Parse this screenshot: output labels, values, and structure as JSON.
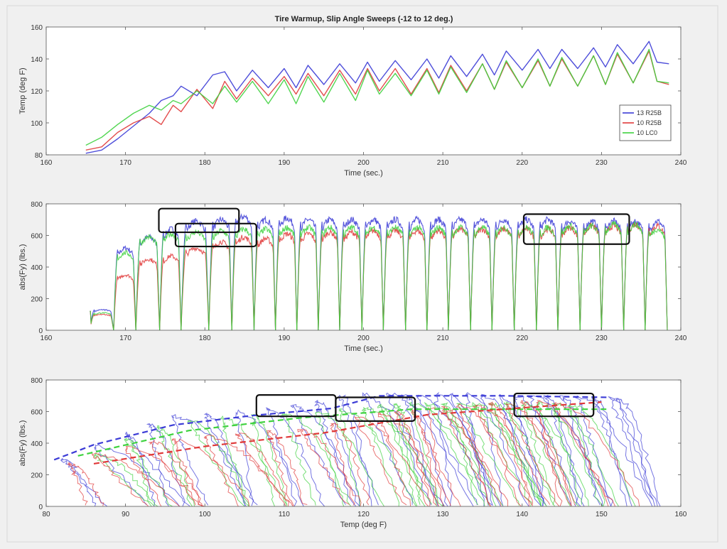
{
  "figure": {
    "title": "Tire Warmup, Slip Angle Sweeps (-12 to 12 deg.)"
  },
  "colors": {
    "blue": "#3b3bd6",
    "red": "#e03a3a",
    "green": "#3fd23f",
    "box": "#111111",
    "axes_bg": "#ffffff"
  },
  "chart_data": [
    {
      "type": "line",
      "name": "temp_vs_time",
      "xlabel": "Time (sec.)",
      "ylabel": "Temp (deg F)",
      "xlim": [
        160,
        240
      ],
      "ylim": [
        80,
        160
      ],
      "xticks": [
        "160",
        "170",
        "180",
        "190",
        "200",
        "210",
        "220",
        "230",
        "240"
      ],
      "yticks": [
        "80",
        "100",
        "120",
        "140",
        "160"
      ],
      "legend": {
        "position": "bottom-right",
        "entries": [
          "13 R25B",
          "10 R25B",
          "10 LC0"
        ]
      },
      "series": [
        {
          "name": "13 R25B",
          "color": "#3b3bd6",
          "x": [
            165,
            167,
            169,
            171,
            173,
            174.5,
            176,
            177,
            179,
            181,
            182.5,
            184,
            186,
            188,
            190,
            191.5,
            193,
            195,
            197,
            199,
            200.5,
            202,
            204,
            206,
            208,
            209.5,
            211,
            213,
            215,
            216.5,
            218,
            220,
            222,
            223.5,
            225,
            227,
            229,
            230.5,
            232,
            234,
            236,
            237,
            238.5
          ],
          "y": [
            81,
            83,
            90,
            98,
            106,
            114,
            117,
            123,
            117,
            130,
            132,
            120,
            133,
            122,
            134,
            122,
            136,
            124,
            137,
            125,
            138,
            126,
            139,
            127,
            140,
            128,
            142,
            129,
            143,
            130,
            145,
            133,
            146,
            134,
            146,
            134,
            147,
            135,
            149,
            137,
            151,
            138,
            137
          ]
        },
        {
          "name": "10 R25B",
          "color": "#e03a3a",
          "x": [
            165,
            167,
            169,
            171,
            173,
            174.5,
            176,
            177,
            179,
            181,
            182.5,
            184,
            186,
            188,
            190,
            191.5,
            193,
            195,
            197,
            199,
            200.5,
            202,
            204,
            206,
            208,
            209.5,
            211,
            213,
            215,
            216.5,
            218,
            220,
            222,
            223.5,
            225,
            227,
            229,
            230.5,
            232,
            234,
            236,
            237,
            238.5
          ],
          "y": [
            83,
            85,
            94,
            100,
            104,
            99,
            111,
            107,
            121,
            109,
            126,
            115,
            128,
            117,
            129,
            118,
            131,
            117,
            133,
            118,
            134,
            120,
            134,
            118,
            134,
            119,
            136,
            120,
            137,
            121,
            138,
            122,
            139,
            123,
            140,
            123,
            142,
            124,
            143,
            125,
            145,
            126,
            124
          ]
        },
        {
          "name": "10 LC0",
          "color": "#3fd23f",
          "x": [
            165,
            167,
            169,
            171,
            173,
            174.5,
            176,
            177,
            179,
            181,
            182.5,
            184,
            186,
            188,
            190,
            191.5,
            193,
            195,
            197,
            199,
            200.5,
            202,
            204,
            206,
            208,
            209.5,
            211,
            213,
            215,
            216.5,
            218,
            220,
            222,
            223.5,
            225,
            227,
            229,
            230.5,
            232,
            234,
            236,
            237,
            238.5
          ],
          "y": [
            86,
            91,
            99,
            106,
            111,
            108,
            114,
            112,
            120,
            112,
            123,
            113,
            126,
            112,
            127,
            112,
            129,
            113,
            131,
            114,
            133,
            118,
            131,
            117,
            133,
            118,
            135,
            119,
            137,
            121,
            139,
            122,
            140,
            123,
            141,
            123,
            142,
            124,
            144,
            125,
            146,
            126,
            125
          ]
        }
      ]
    },
    {
      "type": "line",
      "name": "fy_vs_time",
      "xlabel": "Time (sec.)",
      "ylabel": "abs(Fy) (lbs.)",
      "xlim": [
        160,
        240
      ],
      "ylim": [
        0,
        800
      ],
      "xticks": [
        "160",
        "170",
        "180",
        "190",
        "200",
        "210",
        "220",
        "230",
        "240"
      ],
      "yticks": [
        "0",
        "200",
        "400",
        "600",
        "800"
      ],
      "cycle_minima_x": [
        165.5,
        168.5,
        171.3,
        174.3,
        177,
        180.5,
        183.4,
        186.2,
        188.9,
        191.6,
        194.3,
        197,
        199.8,
        202.5,
        205.3,
        208,
        210.7,
        213.5,
        216.2,
        219,
        221.8,
        224.5,
        227.3,
        230,
        232.8,
        235.5,
        238.3
      ],
      "series": [
        {
          "name": "13 R25B",
          "color": "#3b3bd6",
          "peak_y": [
            130,
            520,
            590,
            640,
            690,
            700,
            720,
            700,
            710,
            700,
            700,
            700,
            700,
            700,
            700,
            700,
            700,
            700,
            700,
            700,
            700,
            690,
            690,
            690,
            690,
            690
          ]
        },
        {
          "name": "10 R25B",
          "color": "#e03a3a",
          "peak_y": [
            100,
            350,
            450,
            470,
            520,
            560,
            590,
            580,
            610,
            610,
            620,
            620,
            630,
            630,
            630,
            630,
            640,
            640,
            640,
            640,
            640,
            650,
            660,
            660,
            670,
            660
          ]
        },
        {
          "name": "10 LC0",
          "color": "#3fd23f",
          "peak_y": [
            110,
            490,
            590,
            610,
            620,
            630,
            640,
            640,
            650,
            650,
            650,
            650,
            650,
            650,
            650,
            650,
            650,
            650,
            650,
            650,
            650,
            660,
            660,
            670,
            670,
            640
          ]
        }
      ],
      "annotation_boxes": [
        {
          "x": [
            174.2,
            184.3
          ],
          "y": [
            620,
            770
          ]
        },
        {
          "x": [
            176.3,
            186.5
          ],
          "y": [
            530,
            675
          ]
        },
        {
          "x": [
            220.2,
            233.5
          ],
          "y": [
            545,
            735
          ]
        }
      ]
    },
    {
      "type": "scatter",
      "name": "fy_vs_temp",
      "xlabel": "Temp (deg F)",
      "ylabel": "abs(Fy) (lbs.)",
      "xlim": [
        80,
        160
      ],
      "ylim": [
        0,
        800
      ],
      "xticks": [
        "80",
        "90",
        "100",
        "110",
        "120",
        "130",
        "140",
        "150",
        "160"
      ],
      "yticks": [
        "0",
        "200",
        "400",
        "600",
        "800"
      ],
      "trend_lines": [
        {
          "name": "13 R25B",
          "color": "#3b3bd6",
          "x": [
            81,
            86,
            96,
            106,
            116,
            122,
            138,
            151
          ],
          "y": [
            295,
            390,
            515,
            575,
            620,
            700,
            700,
            690
          ]
        },
        {
          "name": "10 LC0",
          "color": "#3fd23f",
          "x": [
            84,
            98,
            112,
            126,
            151
          ],
          "y": [
            320,
            480,
            560,
            615,
            615
          ]
        },
        {
          "name": "10 R25B",
          "color": "#e03a3a",
          "x": [
            86,
            100,
            115,
            128,
            150
          ],
          "y": [
            270,
            380,
            465,
            580,
            660
          ]
        }
      ],
      "sweep_peaks": [
        {
          "color": "#3b3bd6",
          "x": [
            82,
            86,
            90,
            93,
            96,
            100,
            104,
            108,
            111,
            114,
            117,
            120,
            123,
            125,
            127,
            129,
            131,
            133,
            135,
            137,
            139,
            141,
            143,
            145,
            147,
            149,
            151,
            152
          ],
          "y": [
            300,
            380,
            460,
            520,
            570,
            590,
            600,
            620,
            640,
            660,
            700,
            710,
            710,
            700,
            700,
            710,
            710,
            710,
            700,
            700,
            700,
            700,
            700,
            690,
            690,
            690,
            690,
            680
          ]
        },
        {
          "color": "#3fd23f",
          "x": [
            86,
            90,
            94,
            98,
            102,
            106,
            110,
            114,
            117,
            120,
            122,
            124,
            126,
            128,
            130,
            132,
            134,
            136,
            138,
            140,
            142,
            144,
            146
          ],
          "y": [
            330,
            430,
            500,
            540,
            560,
            580,
            590,
            600,
            610,
            620,
            640,
            650,
            650,
            650,
            650,
            650,
            650,
            650,
            650,
            650,
            650,
            650,
            640
          ]
        },
        {
          "color": "#e03a3a",
          "x": [
            83,
            86,
            90,
            93,
            96,
            100,
            104,
            108,
            112,
            116,
            119,
            122,
            124,
            126,
            128,
            130,
            132,
            134,
            136,
            138,
            140,
            142,
            144
          ],
          "y": [
            270,
            330,
            370,
            410,
            420,
            440,
            460,
            470,
            480,
            520,
            560,
            590,
            600,
            610,
            620,
            630,
            640,
            640,
            650,
            650,
            660,
            660,
            650
          ]
        }
      ],
      "annotation_boxes": [
        {
          "x": [
            106.5,
            116.5
          ],
          "y": [
            570,
            705
          ]
        },
        {
          "x": [
            116.5,
            126.5
          ],
          "y": [
            540,
            690
          ]
        },
        {
          "x": [
            139,
            149
          ],
          "y": [
            570,
            715
          ]
        }
      ]
    }
  ]
}
